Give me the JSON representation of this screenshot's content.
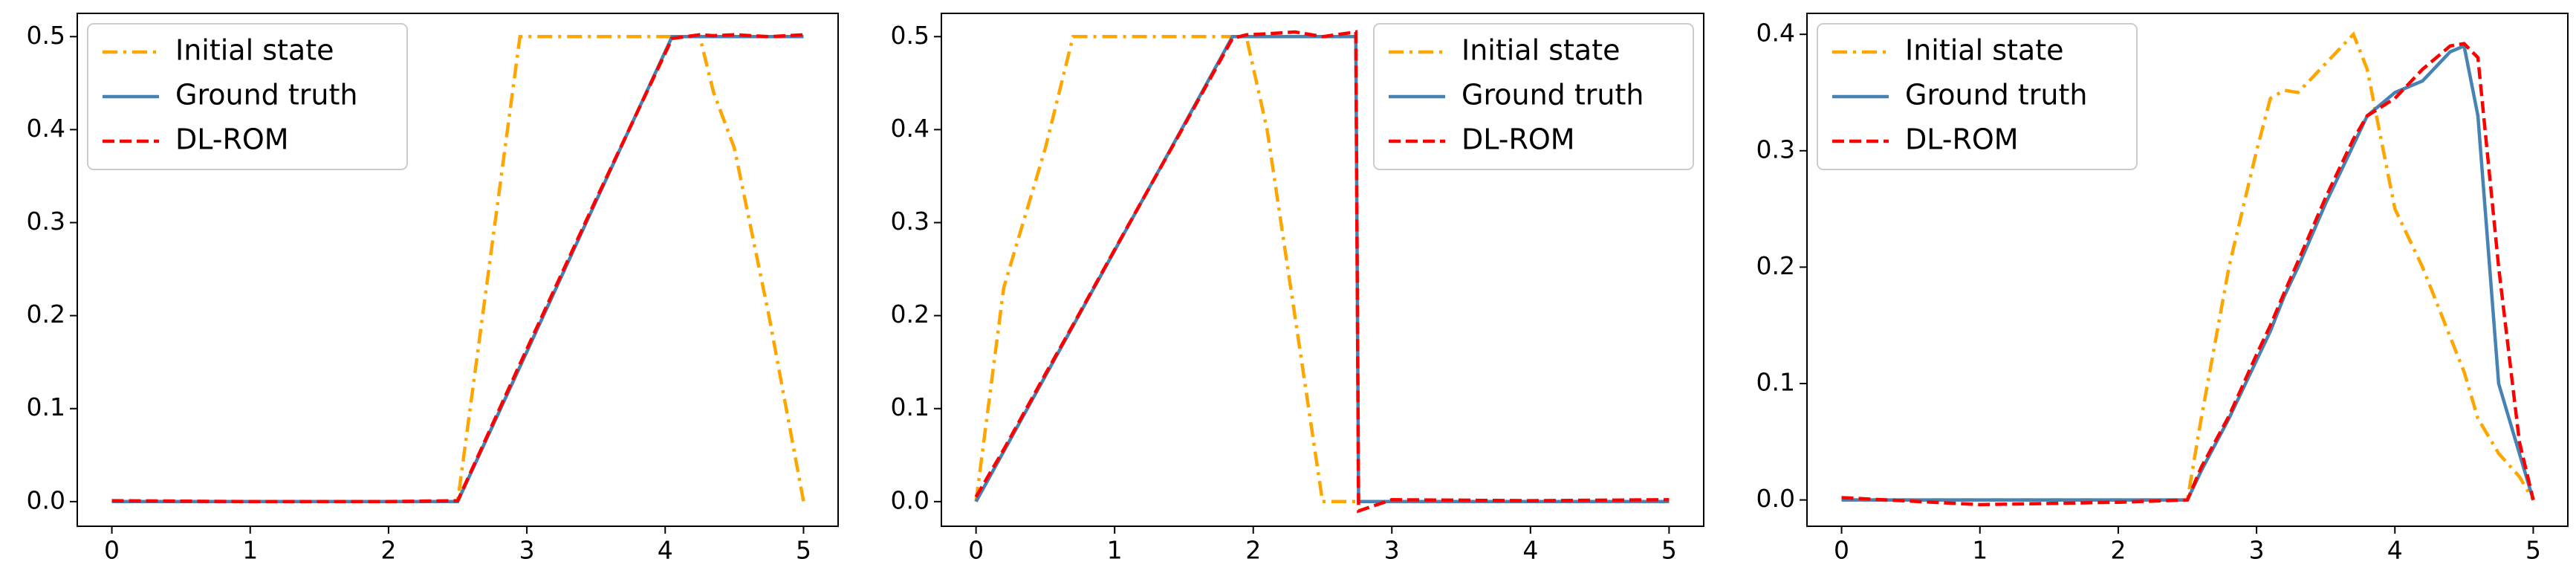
{
  "chart_data": [
    {
      "type": "line",
      "legend": "upper left",
      "xlim": [
        -0.25,
        5.25
      ],
      "ylim": [
        -0.0265,
        0.525
      ],
      "xticks": [
        0,
        1,
        2,
        3,
        4,
        5
      ],
      "yticks": [
        {
          "value": 0,
          "label": "0.0"
        },
        0.1,
        0.2,
        0.3,
        0.4,
        0.5
      ],
      "x": [
        0,
        1,
        2,
        2.5,
        2.95,
        3.5,
        4.05,
        4.25,
        4.35,
        4.5,
        4.75,
        5
      ],
      "series": [
        {
          "name": "Initial state",
          "color": "#ffa500",
          "linestyle": "dashdot",
          "values": [
            0,
            0,
            0,
            0,
            0.5,
            0.5,
            0.5,
            0.5,
            0.44,
            0.38,
            0.2,
            0.0
          ]
        },
        {
          "name": "Ground truth",
          "color": "#4682b4",
          "linestyle": "solid",
          "values": [
            0,
            0,
            0,
            0,
            0.145,
            0.323,
            0.5,
            0.5,
            0.5,
            0.5,
            0.5,
            0.5
          ]
        },
        {
          "name": "DL-ROM",
          "color": "#ff0000",
          "linestyle": "dashed",
          "values": [
            0.001,
            0,
            0,
            0.001,
            0.148,
            0.325,
            0.498,
            0.502,
            0.501,
            0.502,
            0.5,
            0.502
          ]
        }
      ]
    },
    {
      "type": "line",
      "legend": "upper right",
      "xlim": [
        -0.25,
        5.25
      ],
      "ylim": [
        -0.0265,
        0.525
      ],
      "xticks": [
        0,
        1,
        2,
        3,
        4,
        5
      ],
      "yticks": [
        {
          "value": 0,
          "label": "0.0"
        },
        0.1,
        0.2,
        0.3,
        0.4,
        0.5
      ],
      "x": [
        0,
        0.2,
        0.5,
        0.7,
        1,
        1.5,
        1.85,
        1.95,
        2.1,
        2.3,
        2.5,
        2.74,
        2.76,
        3,
        4,
        5
      ],
      "series": [
        {
          "name": "Initial state",
          "color": "#ffa500",
          "linestyle": "dashdot",
          "values": [
            0,
            0.23,
            0.38,
            0.5,
            0.5,
            0.5,
            0.5,
            0.5,
            0.4,
            0.2,
            0,
            0,
            0,
            0,
            0,
            0
          ]
        },
        {
          "name": "Ground truth",
          "color": "#4682b4",
          "linestyle": "solid",
          "values": [
            0,
            0.054,
            0.135,
            0.189,
            0.27,
            0.405,
            0.5,
            0.5,
            0.5,
            0.5,
            0.5,
            0.5,
            0,
            0,
            0,
            0
          ]
        },
        {
          "name": "DL-ROM",
          "color": "#ff0000",
          "linestyle": "dashed",
          "values": [
            0.005,
            0.056,
            0.137,
            0.19,
            0.271,
            0.404,
            0.498,
            0.502,
            0.503,
            0.505,
            0.5,
            0.505,
            -0.01,
            0.002,
            0.001,
            0.002
          ]
        }
      ]
    },
    {
      "type": "line",
      "legend": "upper left",
      "xlim": [
        -0.25,
        5.25
      ],
      "ylim": [
        -0.0226,
        0.418
      ],
      "xticks": [
        0,
        1,
        2,
        3,
        4,
        5
      ],
      "yticks": [
        {
          "value": 0,
          "label": "0.0"
        },
        0.1,
        0.2,
        0.3,
        0.4
      ],
      "x": [
        0,
        1,
        2,
        2.5,
        2.6,
        2.8,
        3,
        3.1,
        3.2,
        3.3,
        3.5,
        3.7,
        3.8,
        4,
        4.2,
        4.4,
        4.5,
        4.6,
        4.75,
        4.9,
        5
      ],
      "series": [
        {
          "name": "Initial state",
          "color": "#ffa500",
          "linestyle": "dashdot",
          "values": [
            0,
            0,
            0,
            0,
            0.07,
            0.2,
            0.3,
            0.345,
            0.352,
            0.35,
            0.375,
            0.4,
            0.37,
            0.25,
            0.2,
            0.14,
            0.11,
            0.07,
            0.04,
            0.02,
            0
          ]
        },
        {
          "name": "Ground truth",
          "color": "#4682b4",
          "linestyle": "solid",
          "values": [
            0,
            0,
            0,
            0,
            0.025,
            0.07,
            0.12,
            0.145,
            0.175,
            0.2,
            0.255,
            0.305,
            0.33,
            0.35,
            0.36,
            0.385,
            0.39,
            0.33,
            0.1,
            0.04,
            0
          ]
        },
        {
          "name": "DL-ROM",
          "color": "#ff0000",
          "linestyle": "dashed",
          "values": [
            0.002,
            -0.004,
            -0.002,
            0,
            0.028,
            0.072,
            0.125,
            0.15,
            0.178,
            0.205,
            0.26,
            0.31,
            0.33,
            0.345,
            0.37,
            0.39,
            0.392,
            0.38,
            0.2,
            0.05,
            0
          ]
        }
      ]
    }
  ]
}
